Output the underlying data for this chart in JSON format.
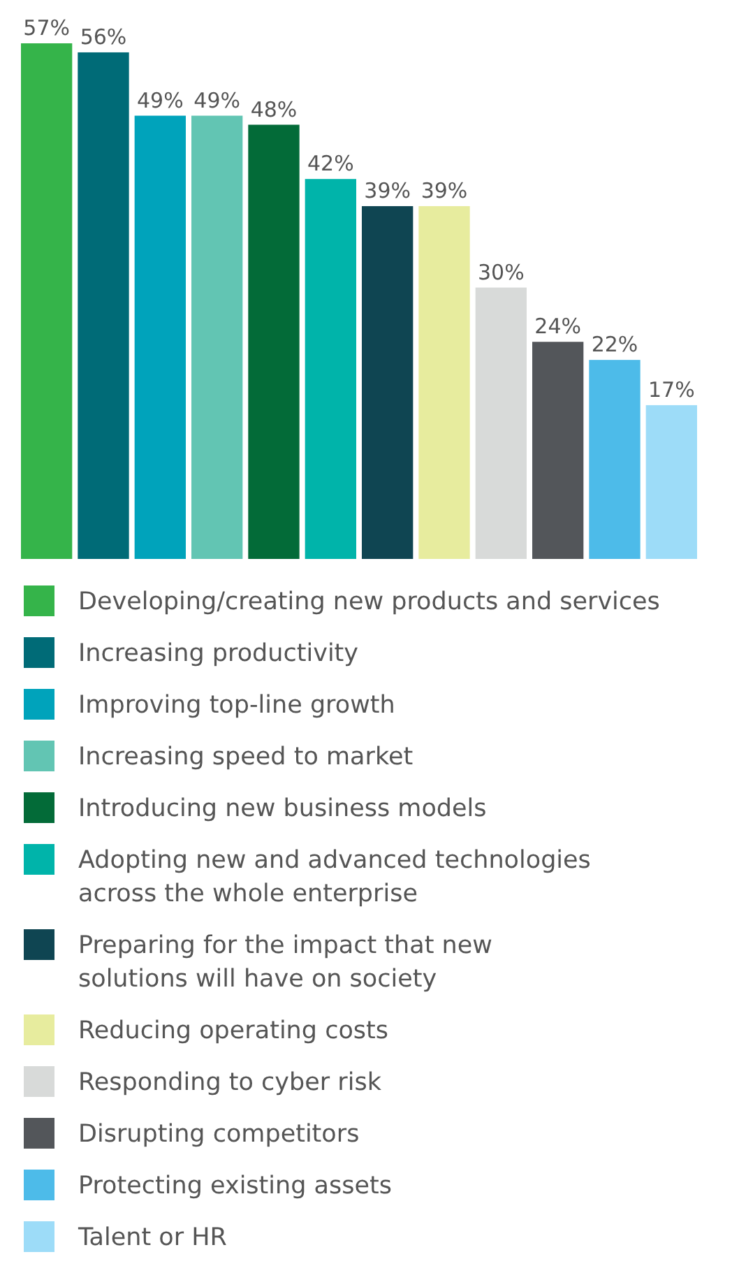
{
  "chart_data": {
    "type": "bar",
    "categories": [
      null
    ],
    "legend": "bottom",
    "series": [
      {
        "name": "Developing/creating new products and services",
        "color": "#35b44a",
        "values": [
          57
        ],
        "value_labels": [
          "57%"
        ]
      },
      {
        "name": "Increasing productivity",
        "color": "#006b77",
        "values": [
          56
        ],
        "value_labels": [
          "56%"
        ]
      },
      {
        "name": "Improving top-line growth",
        "color": "#00a3bb",
        "values": [
          49
        ],
        "value_labels": [
          "49%"
        ]
      },
      {
        "name": "Increasing speed to market",
        "color": "#62c5b3",
        "values": [
          49
        ],
        "value_labels": [
          "49%"
        ]
      },
      {
        "name": "Introducing new business models",
        "color": "#036b38",
        "values": [
          48
        ],
        "value_labels": [
          "48%"
        ]
      },
      {
        "name": "Adopting new and advanced technologies\nacross the whole enterprise",
        "color": "#00b4aa",
        "values": [
          42
        ],
        "value_labels": [
          "42%"
        ]
      },
      {
        "name": "Preparing for the impact that new\nsolutions will have on society",
        "color": "#0f4552",
        "values": [
          39
        ],
        "value_labels": [
          "39%"
        ]
      },
      {
        "name": "Reducing operating costs",
        "color": "#e7ec9e",
        "values": [
          39
        ],
        "value_labels": [
          "39%"
        ]
      },
      {
        "name": "Responding to cyber risk",
        "color": "#d8dad9",
        "values": [
          30
        ],
        "value_labels": [
          "30%"
        ]
      },
      {
        "name": "Disrupting competitors",
        "color": "#53565a",
        "values": [
          24
        ],
        "value_labels": [
          "24%"
        ]
      },
      {
        "name": "Protecting existing assets",
        "color": "#4dbbe9",
        "values": [
          22
        ],
        "value_labels": [
          "22%"
        ]
      },
      {
        "name": "Talent or HR",
        "color": "#9ddcf8",
        "values": [
          17
        ],
        "value_labels": [
          "17%"
        ]
      }
    ]
  }
}
